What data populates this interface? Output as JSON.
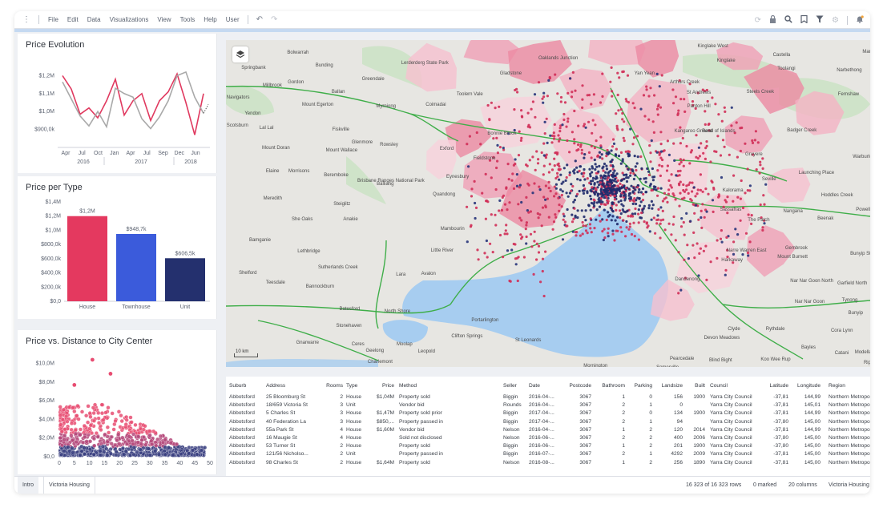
{
  "menubar": {
    "items": [
      "File",
      "Edit",
      "Data",
      "Visualizations",
      "View",
      "Tools",
      "Help",
      "User"
    ],
    "right_icons": [
      "sync-icon",
      "lock-icon",
      "search-icon",
      "bookmark-icon",
      "filter-icon",
      "gear-icon",
      "notification-icon"
    ]
  },
  "price_evolution": {
    "title": "Price Evolution",
    "chart_data": {
      "type": "line",
      "ylim": [
        800000,
        1300000
      ],
      "y_ticks": [
        "$1,2M",
        "$1,1M",
        "$1,0M",
        "$900,0k"
      ],
      "y_tick_values": [
        1200000,
        1100000,
        1000000,
        900000
      ],
      "x_tick_labels": [
        "Apr",
        "Jul",
        "Oct",
        "Jan",
        "Apr",
        "Jul",
        "Sep",
        "Dec",
        "Jun"
      ],
      "year_labels": [
        "2016",
        "2017",
        "2018"
      ],
      "series": [
        {
          "color": "#e0395f",
          "values": [
            1200000,
            1125000,
            985000,
            1020000,
            965000,
            1060000,
            1180000,
            980000,
            1060000,
            1100000,
            950000,
            1060000,
            1110000,
            1210000,
            1050000,
            870000,
            1100000
          ]
        },
        {
          "color": "#a9a9a9",
          "values": [
            1165000,
            1070000,
            975000,
            920000,
            1000000,
            915000,
            1130000,
            1100000,
            1080000,
            960000,
            905000,
            970000,
            1060000,
            1200000,
            1220000,
            1080000,
            990000
          ]
        }
      ],
      "tail": {
        "color": "#555555",
        "values": [
          990000,
          1040000
        ]
      }
    }
  },
  "price_per_type": {
    "title": "Price per Type",
    "chart_data": {
      "type": "bar",
      "ylim": [
        0,
        1400000
      ],
      "y_ticks": [
        "$1,4M",
        "$1,2M",
        "$1,0M",
        "$800,0k",
        "$600,0k",
        "$400,0k",
        "$200,0k",
        "$0,0"
      ],
      "categories": [
        "House",
        "Townhouse",
        "Unit"
      ],
      "values": [
        1200000,
        948700,
        606500
      ],
      "value_labels": [
        "$1,2M",
        "$948,7k",
        "$606,5k"
      ],
      "colors": [
        "#e4395f",
        "#3b5bdb",
        "#24306e"
      ]
    }
  },
  "price_distance": {
    "title": "Price vs. Distance to City Center",
    "chart_data": {
      "type": "scatter",
      "xlim": [
        0,
        50
      ],
      "ylim": [
        0,
        11000000
      ],
      "x_ticks": [
        "0",
        "5",
        "10",
        "15",
        "20",
        "25",
        "30",
        "35",
        "40",
        "45",
        "50"
      ],
      "y_ticks": [
        "$10,0M",
        "$8,0M",
        "$6,0M",
        "$4,0M",
        "$2,0M",
        "$0,0"
      ],
      "y_tick_values": [
        10000000,
        8000000,
        6000000,
        4000000,
        2000000,
        0
      ],
      "outliers": [
        [
          11,
          10400000
        ],
        [
          17,
          8900000
        ],
        [
          5,
          7700000
        ]
      ]
    }
  },
  "map": {
    "scale_label": "10 km",
    "labels": [
      {
        "t": "Springbank",
        "x": 2.4,
        "y": 7.8
      },
      {
        "t": "Bolwarrah",
        "x": 9.5,
        "y": 3.2
      },
      {
        "t": "Bunding",
        "x": 13.9,
        "y": 7.1
      },
      {
        "t": "Greendale",
        "x": 21.1,
        "y": 11.2
      },
      {
        "t": "Lerderderg State Park",
        "x": 27.2,
        "y": 6.4
      },
      {
        "t": "Millbrook",
        "x": 5.7,
        "y": 13.2
      },
      {
        "t": "Gordon",
        "x": 9.6,
        "y": 12.2
      },
      {
        "t": "Ballan",
        "x": 16.4,
        "y": 15.2
      },
      {
        "t": "Toolern Vale",
        "x": 35.8,
        "y": 15.9
      },
      {
        "t": "Navigators",
        "x": 0.1,
        "y": 16.9
      },
      {
        "t": "Mount Egerton",
        "x": 11.8,
        "y": 19.1
      },
      {
        "t": "Myrniong",
        "x": 23.3,
        "y": 19.6
      },
      {
        "t": "Coimadai",
        "x": 31.0,
        "y": 19.1
      },
      {
        "t": "Yendon",
        "x": 2.9,
        "y": 21.8
      },
      {
        "t": "Scotsburn",
        "x": 0.1,
        "y": 25.5
      },
      {
        "t": "Lal Lal",
        "x": 5.2,
        "y": 26.2
      },
      {
        "t": "Fiskville",
        "x": 16.5,
        "y": 26.7
      },
      {
        "t": "Bonnie Brook",
        "x": 40.6,
        "y": 27.9
      },
      {
        "t": "Mount Doran",
        "x": 5.6,
        "y": 32.4
      },
      {
        "t": "Glenmore",
        "x": 19.5,
        "y": 30.6
      },
      {
        "t": "Rowsley",
        "x": 23.9,
        "y": 31.4
      },
      {
        "t": "Exford",
        "x": 33.2,
        "y": 32.6
      },
      {
        "t": "Mount Wallace",
        "x": 15.5,
        "y": 33.1
      },
      {
        "t": "Fieldstone",
        "x": 38.4,
        "y": 35.5
      },
      {
        "t": "Elaine",
        "x": 6.2,
        "y": 39.5
      },
      {
        "t": "Morrisons",
        "x": 9.7,
        "y": 39.5
      },
      {
        "t": "Beremboke",
        "x": 15.2,
        "y": 40.6
      },
      {
        "t": "Brisbane Ranges National Park",
        "x": 20.4,
        "y": 42.5
      },
      {
        "t": "Balliang",
        "x": 23.4,
        "y": 43.4
      },
      {
        "t": "Eynesbury",
        "x": 34.2,
        "y": 41.2
      },
      {
        "t": "Quandong",
        "x": 32.1,
        "y": 46.5
      },
      {
        "t": "Meredith",
        "x": 5.8,
        "y": 47.8
      },
      {
        "t": "Steiglitz",
        "x": 16.7,
        "y": 49.4
      },
      {
        "t": "She Oaks",
        "x": 10.2,
        "y": 54.2
      },
      {
        "t": "Anakie",
        "x": 18.2,
        "y": 54.2
      },
      {
        "t": "Mambourin",
        "x": 33.3,
        "y": 57.0
      },
      {
        "t": "Bamganie",
        "x": 3.6,
        "y": 60.5
      },
      {
        "t": "Lethbridge",
        "x": 11.1,
        "y": 64.0
      },
      {
        "t": "Little River",
        "x": 31.8,
        "y": 63.7
      },
      {
        "t": "Sutherlands Creek",
        "x": 14.3,
        "y": 68.9
      },
      {
        "t": "Lara",
        "x": 26.4,
        "y": 71.2
      },
      {
        "t": "Avalon",
        "x": 30.3,
        "y": 70.8
      },
      {
        "t": "Teesdale",
        "x": 6.2,
        "y": 73.5
      },
      {
        "t": "Bannockburn",
        "x": 12.4,
        "y": 74.8
      },
      {
        "t": "Shelford",
        "x": 2.0,
        "y": 70.6
      },
      {
        "t": "Batesford",
        "x": 17.6,
        "y": 81.5
      },
      {
        "t": "North Shore",
        "x": 24.6,
        "y": 82.4
      },
      {
        "t": "Stonehaven",
        "x": 17.1,
        "y": 86.7
      },
      {
        "t": "Geelong",
        "x": 21.7,
        "y": 94.4
      },
      {
        "t": "Portarlington",
        "x": 38.1,
        "y": 85.1
      },
      {
        "t": "Clifton Springs",
        "x": 35.0,
        "y": 89.9
      },
      {
        "t": "St Leonards",
        "x": 44.9,
        "y": 91.1
      },
      {
        "t": "Gnarwarre",
        "x": 10.9,
        "y": 91.8
      },
      {
        "t": "Ceres",
        "x": 19.5,
        "y": 92.4
      },
      {
        "t": "Leopold",
        "x": 29.8,
        "y": 94.6
      },
      {
        "t": "Moolap",
        "x": 26.5,
        "y": 92.4
      },
      {
        "t": "Charlemont",
        "x": 22.0,
        "y": 97.8
      },
      {
        "t": "Oaklands Junction",
        "x": 48.5,
        "y": 4.8
      },
      {
        "t": "Gladstone",
        "x": 42.5,
        "y": 9.6
      },
      {
        "t": "Yan Yean",
        "x": 63.4,
        "y": 9.6
      },
      {
        "t": "Arthurs Creek",
        "x": 68.9,
        "y": 12.2
      },
      {
        "t": "St Andrews",
        "x": 71.5,
        "y": 15.4
      },
      {
        "t": "Panton Hill",
        "x": 71.6,
        "y": 19.6
      },
      {
        "t": "Kangaroo Ground",
        "x": 69.6,
        "y": 27.1
      },
      {
        "t": "Bend of Islands",
        "x": 73.9,
        "y": 27.3
      },
      {
        "t": "Kinglake",
        "x": 76.2,
        "y": 5.6
      },
      {
        "t": "Kinglake West",
        "x": 73.2,
        "y": 1.2
      },
      {
        "t": "Castella",
        "x": 84.9,
        "y": 4.0
      },
      {
        "t": "Toolangi",
        "x": 85.6,
        "y": 8.1
      },
      {
        "t": "Narbethong",
        "x": 94.8,
        "y": 8.6
      },
      {
        "t": "Steels Creek",
        "x": 80.8,
        "y": 15.2
      },
      {
        "t": "Fernshaw",
        "x": 95.0,
        "y": 16.0
      },
      {
        "t": "Badger Creek",
        "x": 87.1,
        "y": 27.0
      },
      {
        "t": "Gruyere",
        "x": 80.6,
        "y": 34.3
      },
      {
        "t": "Seville",
        "x": 83.2,
        "y": 41.9
      },
      {
        "t": "Launching Place",
        "x": 88.9,
        "y": 40.0
      },
      {
        "t": "Hoddles Creek",
        "x": 92.4,
        "y": 46.8
      },
      {
        "t": "Powelltown",
        "x": 97.8,
        "y": 51.2
      },
      {
        "t": "Nangana",
        "x": 86.5,
        "y": 51.7
      },
      {
        "t": "Beenak",
        "x": 91.8,
        "y": 53.9
      },
      {
        "t": "Gembrook",
        "x": 86.8,
        "y": 63.0
      },
      {
        "t": "Mount Burnett",
        "x": 85.6,
        "y": 65.7
      },
      {
        "t": "Bunyip State Park",
        "x": 96.9,
        "y": 64.7
      },
      {
        "t": "Harkaway",
        "x": 76.9,
        "y": 66.7
      },
      {
        "t": "Narre Warren East",
        "x": 77.7,
        "y": 63.7
      },
      {
        "t": "Nar Nar Goon North",
        "x": 87.6,
        "y": 73.0
      },
      {
        "t": "Garfield North",
        "x": 94.9,
        "y": 73.8
      },
      {
        "t": "Tynong",
        "x": 95.6,
        "y": 78.9
      },
      {
        "t": "Nar Nar Goon",
        "x": 88.3,
        "y": 79.4
      },
      {
        "t": "Bunyip",
        "x": 96.6,
        "y": 82.8
      },
      {
        "t": "Cora Lynn",
        "x": 93.9,
        "y": 88.2
      },
      {
        "t": "Clyde",
        "x": 77.9,
        "y": 87.7
      },
      {
        "t": "Rythdale",
        "x": 83.8,
        "y": 87.7
      },
      {
        "t": "Devon Meadows",
        "x": 74.2,
        "y": 90.4
      },
      {
        "t": "Bayles",
        "x": 89.3,
        "y": 93.4
      },
      {
        "t": "Catani",
        "x": 94.5,
        "y": 95.1
      },
      {
        "t": "Modella",
        "x": 97.6,
        "y": 94.9
      },
      {
        "t": "Koo Wee Rup",
        "x": 83.0,
        "y": 97.1
      },
      {
        "t": "Blind Bight",
        "x": 75.0,
        "y": 97.3
      },
      {
        "t": "Pearcedale",
        "x": 68.9,
        "y": 96.8
      },
      {
        "t": "Mornington",
        "x": 55.5,
        "y": 99.0
      },
      {
        "t": "Somerville",
        "x": 66.8,
        "y": 99.5
      },
      {
        "t": "Ripple",
        "x": 99.0,
        "y": 98.0
      },
      {
        "t": "Dandenong",
        "x": 69.7,
        "y": 72.5
      },
      {
        "t": "The Patch",
        "x": 81.0,
        "y": 54.4
      },
      {
        "t": "Sassafras",
        "x": 76.7,
        "y": 51.2
      },
      {
        "t": "Kalorama",
        "x": 77.1,
        "y": 45.3
      },
      {
        "t": "Warburton",
        "x": 97.3,
        "y": 35.0
      },
      {
        "t": "Marysville",
        "x": 98.8,
        "y": 3.0
      }
    ]
  },
  "table": {
    "columns": [
      {
        "label": "Suburb",
        "x": 4,
        "w": 44,
        "align": "left"
      },
      {
        "label": "Address",
        "x": 50,
        "w": 68,
        "align": "left"
      },
      {
        "label": "Rooms",
        "x": 118,
        "w": 28,
        "align": "right"
      },
      {
        "label": "Type",
        "x": 150,
        "w": 30,
        "align": "left"
      },
      {
        "label": "Price",
        "x": 180,
        "w": 30,
        "align": "right"
      },
      {
        "label": "Method",
        "x": 216,
        "w": 120,
        "align": "left"
      },
      {
        "label": "Seller",
        "x": 346,
        "w": 32,
        "align": "left"
      },
      {
        "label": "Date",
        "x": 378,
        "w": 40,
        "align": "left"
      },
      {
        "label": "Postcode",
        "x": 420,
        "w": 36,
        "align": "right"
      },
      {
        "label": "Bathroom",
        "x": 462,
        "w": 36,
        "align": "right"
      },
      {
        "label": "Parking",
        "x": 502,
        "w": 30,
        "align": "right"
      },
      {
        "label": "Landsize",
        "x": 536,
        "w": 34,
        "align": "right"
      },
      {
        "label": "Built",
        "x": 576,
        "w": 22,
        "align": "right"
      },
      {
        "label": "Council",
        "x": 604,
        "w": 62,
        "align": "left"
      },
      {
        "label": "Latitude",
        "x": 668,
        "w": 34,
        "align": "right"
      },
      {
        "label": "Longitude",
        "x": 704,
        "w": 38,
        "align": "right"
      },
      {
        "label": "Region",
        "x": 752,
        "w": 52,
        "align": "left"
      }
    ],
    "rows": [
      [
        "Abbotsford",
        "25 Bloomburg St",
        "2",
        "House",
        "$1,04M",
        "Property sold",
        "Biggin",
        "2016-04-...",
        "3067",
        "1",
        "0",
        "156",
        "1900",
        "Yarra City Council",
        "-37,81",
        "144,99",
        "Northern Metropolitan"
      ],
      [
        "Abbotsford",
        "18/659 Victoria St",
        "3",
        "Unit",
        "",
        "Vendor bid",
        "Rounds",
        "2016-04-...",
        "3067",
        "2",
        "1",
        "0",
        "",
        "Yarra City Council",
        "-37,81",
        "145,01",
        "Northern Metropolitan"
      ],
      [
        "Abbotsford",
        "5 Charles St",
        "3",
        "House",
        "$1,47M",
        "Property sold prior",
        "Biggin",
        "2017-04-...",
        "3067",
        "2",
        "0",
        "134",
        "1900",
        "Yarra City Council",
        "-37,81",
        "144,99",
        "Northern Metropolitan"
      ],
      [
        "Abbotsford",
        "40 Federation La",
        "3",
        "House",
        "$850,...",
        "Property passed in",
        "Biggin",
        "2017-04-...",
        "3067",
        "2",
        "1",
        "94",
        "",
        "Yarra City Council",
        "-37,80",
        "145,00",
        "Northern Metropolitan"
      ],
      [
        "Abbotsford",
        "55a Park St",
        "4",
        "House",
        "$1,60M",
        "Vendor bid",
        "Nelson",
        "2016-04-...",
        "3067",
        "1",
        "2",
        "120",
        "2014",
        "Yarra City Council",
        "-37,81",
        "144,99",
        "Northern Metropolitan"
      ],
      [
        "Abbotsford",
        "16 Maugie St",
        "4",
        "House",
        "",
        "Sold not disclosed",
        "Nelson",
        "2016-06-...",
        "3067",
        "2",
        "2",
        "400",
        "2006",
        "Yarra City Council",
        "-37,80",
        "145,00",
        "Northern Metropolitan"
      ],
      [
        "Abbotsford",
        "53 Turner St",
        "2",
        "House",
        "",
        "Property sold",
        "Biggin",
        "2016-06-...",
        "3067",
        "1",
        "2",
        "201",
        "1900",
        "Yarra City Council",
        "-37,80",
        "145,00",
        "Northern Metropolitan"
      ],
      [
        "Abbotsford",
        "121/56 Nicholso...",
        "2",
        "Unit",
        "",
        "Property passed in",
        "Biggin",
        "2016-07-...",
        "3067",
        "2",
        "1",
        "4292",
        "2009",
        "Yarra City Council",
        "-37,81",
        "145,00",
        "Northern Metropolitan"
      ],
      [
        "Abbotsford",
        "98 Charles St",
        "2",
        "House",
        "$1,64M",
        "Property sold",
        "Nelson",
        "2016-08-...",
        "3067",
        "1",
        "2",
        "256",
        "1890",
        "Yarra City Council",
        "-37,81",
        "145,00",
        "Northern Metropolitan"
      ]
    ]
  },
  "tabs": [
    {
      "label": "Intro",
      "active": false
    },
    {
      "label": "Victoria Housing",
      "active": true
    }
  ],
  "status": {
    "rows": "16 323 of 16 323 rows",
    "marked": "0 marked",
    "columns": "20 columns",
    "table": "Victoria Housing"
  }
}
